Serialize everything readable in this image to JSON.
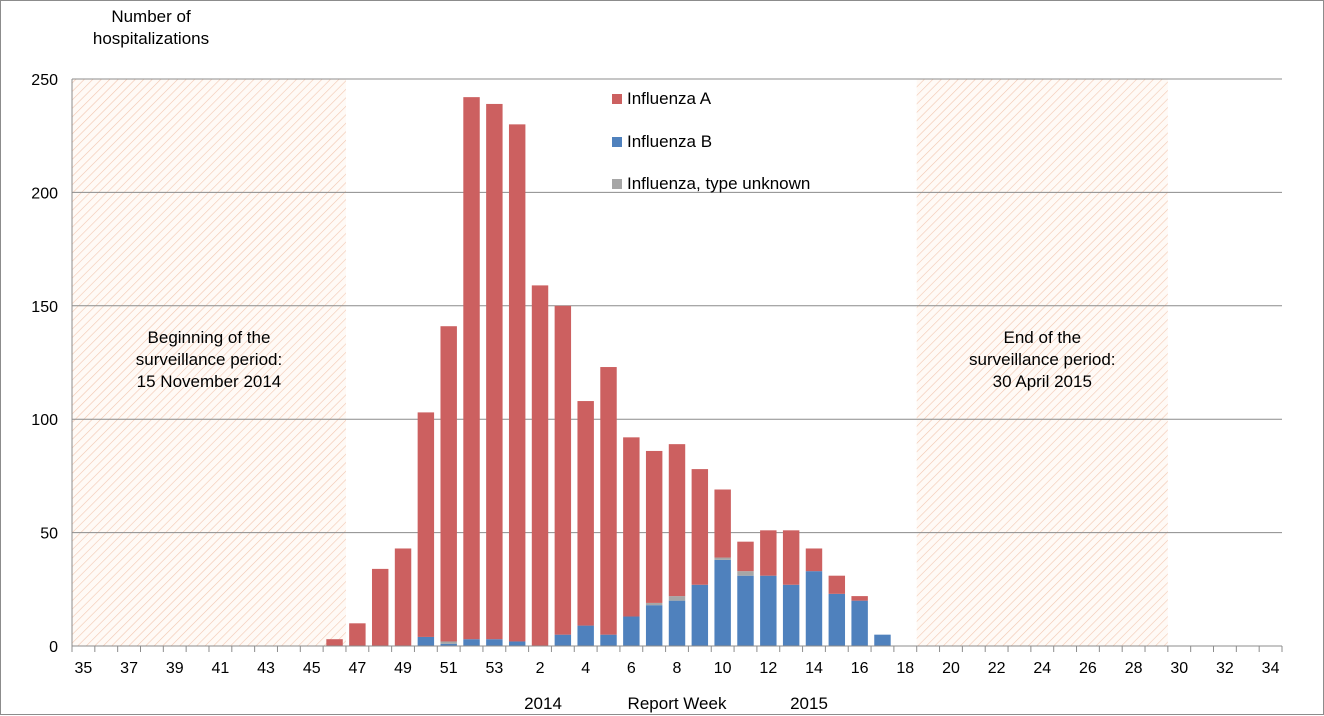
{
  "chart_data": {
    "type": "bar",
    "stacked": true,
    "ylabel": "Number of hospitalizations",
    "xlabel": "Report Week",
    "year_labels": [
      "2014",
      "2015"
    ],
    "ylim": [
      0,
      250
    ],
    "y_ticks": [
      0,
      50,
      100,
      150,
      200,
      250
    ],
    "grid": true,
    "legend_position": "top-center",
    "x_tick_labels": [
      "35",
      "37",
      "39",
      "41",
      "43",
      "45",
      "47",
      "49",
      "51",
      "53",
      "2",
      "4",
      "6",
      "8",
      "10",
      "12",
      "14",
      "16",
      "18",
      "20",
      "22",
      "24",
      "26",
      "28",
      "30",
      "32",
      "34"
    ],
    "categories": [
      "35",
      "36",
      "37",
      "38",
      "39",
      "40",
      "41",
      "42",
      "43",
      "44",
      "45",
      "46",
      "47",
      "48",
      "49",
      "50",
      "51",
      "52",
      "53",
      "1",
      "2",
      "3",
      "4",
      "5",
      "6",
      "7",
      "8",
      "9",
      "10",
      "11",
      "12",
      "13",
      "14",
      "15",
      "16",
      "17",
      "18",
      "19",
      "20",
      "21",
      "22",
      "23",
      "24",
      "25",
      "26",
      "27",
      "28",
      "29",
      "30",
      "31",
      "32",
      "33",
      "34"
    ],
    "series": [
      {
        "name": "Influenza A",
        "color": "#cc6060",
        "values": [
          0,
          0,
          0,
          0,
          0,
          0,
          0,
          0,
          0,
          0,
          0,
          3,
          10,
          34,
          43,
          99,
          139,
          239,
          236,
          228,
          159,
          145,
          99,
          118,
          79,
          67,
          67,
          51,
          30,
          13,
          20,
          24,
          10,
          8,
          2,
          0,
          0,
          0,
          0,
          0,
          0,
          0,
          0,
          0,
          0,
          0,
          0,
          0,
          0,
          0,
          0,
          0,
          0
        ]
      },
      {
        "name": "Influenza B",
        "color": "#4f81bd",
        "values": [
          0,
          0,
          0,
          0,
          0,
          0,
          0,
          0,
          0,
          0,
          0,
          0,
          0,
          0,
          0,
          4,
          1,
          3,
          3,
          2,
          0,
          5,
          9,
          5,
          13,
          18,
          20,
          27,
          38,
          31,
          31,
          27,
          33,
          23,
          20,
          5,
          0,
          0,
          0,
          0,
          0,
          0,
          0,
          0,
          0,
          0,
          0,
          0,
          0,
          0,
          0,
          0,
          0
        ]
      },
      {
        "name": "Influenza, type unknown",
        "color": "#a6a6a6",
        "values": [
          0,
          0,
          0,
          0,
          0,
          0,
          0,
          0,
          0,
          0,
          0,
          0,
          0,
          0,
          0,
          0,
          1,
          0,
          0,
          0,
          0,
          0,
          0,
          0,
          0,
          1,
          2,
          0,
          1,
          2,
          0,
          0,
          0,
          0,
          0,
          0,
          0,
          0,
          0,
          0,
          0,
          0,
          0,
          0,
          0,
          0,
          0,
          0,
          0,
          0,
          0,
          0,
          0
        ]
      }
    ],
    "shaded_regions": [
      {
        "from_week": "35",
        "to_week": "46",
        "label_lines": [
          "Beginning of the",
          "surveillance period:",
          "15 November 2014"
        ]
      },
      {
        "from_week": "19",
        "to_week": "29",
        "label_lines": [
          "End of the",
          "surveillance period:",
          "30 April 2015"
        ]
      }
    ]
  }
}
